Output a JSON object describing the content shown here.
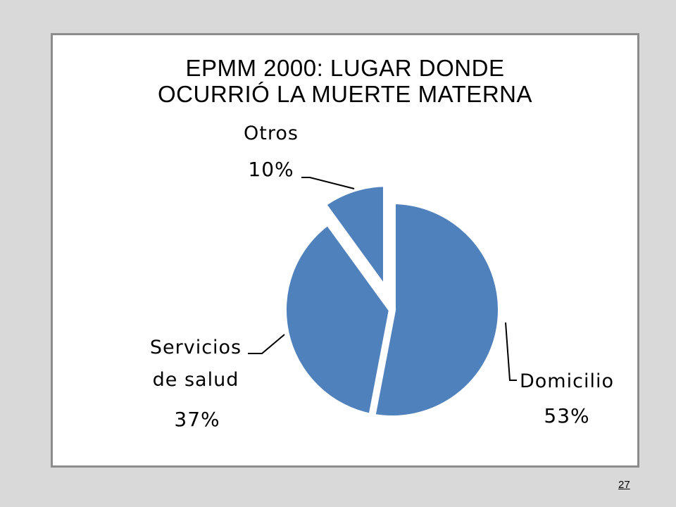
{
  "chart_data": {
    "type": "pie",
    "title_lines": [
      "EPMM 2000:  LUGAR  DONDE",
      "OCURRIÓ  LA MUERTE  MATERNA"
    ],
    "slices": [
      {
        "name_lines": [
          "Domicilio"
        ],
        "value": 53,
        "label": "53%",
        "exploded": false
      },
      {
        "name_lines": [
          "Servicios",
          "de salud"
        ],
        "value": 37,
        "label": "37%",
        "exploded": false
      },
      {
        "name_lines": [
          "Otros"
        ],
        "value": 10,
        "label": "10%",
        "exploded": true
      }
    ],
    "colors": {
      "slice_fill": "#4f81bd",
      "slice_stroke": "#ffffff",
      "leader_line": "#000000"
    }
  },
  "footer": {
    "page_number": "27"
  }
}
